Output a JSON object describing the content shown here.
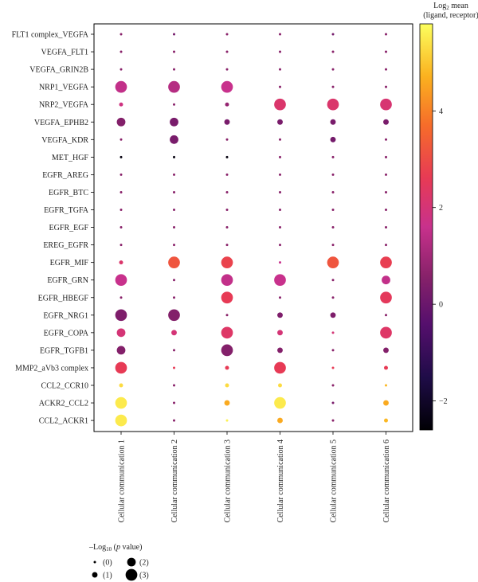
{
  "chart_data": {
    "type": "scatter",
    "subtype": "dot-plot",
    "y_categories": [
      "FLT1 complex_VEGFA",
      "VEGFA_FLT1",
      "VEGFA_GRIN2B",
      "NRP1_VEGFA",
      "NRP2_VEGFA",
      "VEGFA_EPHB2",
      "VEGFA_KDR",
      "MET_HGF",
      "EGFR_AREG",
      "EGFR_BTC",
      "EGFR_TGFA",
      "EGFR_EGF",
      "EREG_EGFR",
      "EGFR_MIF",
      "EGFR_GRN",
      "EGFR_HBEGF",
      "EGFR_NRG1",
      "EGFR_COPA",
      "EGFR_TGFB1",
      "MMP2_aVb3 complex",
      "CCL2_CCR10",
      "ACKR2_CCL2",
      "CCL2_ACKR1"
    ],
    "x_categories": [
      "Cellular communication 1",
      "Cellular communication 2",
      "Cellular communication 3",
      "Cellular communication 4",
      "Cellular communication 5",
      "Cellular communication 6"
    ],
    "colorbar": {
      "title_line1": "Log",
      "title_sub": "2",
      "title_line1_rest": " mean",
      "title_line2": "(ligand, receptor)",
      "min": -2.6,
      "max": 5.8,
      "ticks": [
        -2,
        0,
        2,
        4
      ],
      "tick_labels": [
        "−2",
        "0",
        "2",
        "4"
      ]
    },
    "size_legend": {
      "title_prefix": "–Log",
      "title_sub": "10",
      "title_open": " (",
      "title_italic": "p",
      "title_suffix": " value)",
      "levels": [
        {
          "value": 0,
          "label": "(0)"
        },
        {
          "value": 1,
          "label": "(1)"
        },
        {
          "value": 2,
          "label": "(2)"
        },
        {
          "value": 3,
          "label": "(3)"
        }
      ]
    },
    "points": {
      "color": [
        [
          0.6,
          0.2,
          0.6,
          0.6,
          0.2,
          0.6
        ],
        [
          0.6,
          0.6,
          0.6,
          0.6,
          0.6,
          0.6
        ],
        [
          0.6,
          0.6,
          0.6,
          0.6,
          0.6,
          0.6
        ],
        [
          1.5,
          1.3,
          1.6,
          0.6,
          0.6,
          0.6
        ],
        [
          1.8,
          0.6,
          0.8,
          2.2,
          2.2,
          2.1
        ],
        [
          0.5,
          0.3,
          0.3,
          0.3,
          0.3,
          0.3
        ],
        [
          0.6,
          0.3,
          0.6,
          0.6,
          0.2,
          0.6
        ],
        [
          -2.4,
          -2.4,
          -2.4,
          0.6,
          0.6,
          0.6
        ],
        [
          0.6,
          0.6,
          0.6,
          0.6,
          0.6,
          0.6
        ],
        [
          0.6,
          0.6,
          0.6,
          0.6,
          0.6,
          0.6
        ],
        [
          0.6,
          0.6,
          0.6,
          0.6,
          0.6,
          0.6
        ],
        [
          0.6,
          0.6,
          0.6,
          0.6,
          0.6,
          0.6
        ],
        [
          0.6,
          0.6,
          0.6,
          0.6,
          0.6,
          0.6
        ],
        [
          2.2,
          3.2,
          2.8,
          1.6,
          3.2,
          2.7
        ],
        [
          1.6,
          0.6,
          1.5,
          1.6,
          0.6,
          1.5
        ],
        [
          0.6,
          0.6,
          2.6,
          0.6,
          0.6,
          2.5
        ],
        [
          0.4,
          0.5,
          0.6,
          0.4,
          0.4,
          0.6
        ],
        [
          2.0,
          2.0,
          2.3,
          2.0,
          2.0,
          2.3
        ],
        [
          0.5,
          0.6,
          0.5,
          0.5,
          0.6,
          0.5
        ],
        [
          2.6,
          2.6,
          2.6,
          2.6,
          2.6,
          2.6
        ],
        [
          5.3,
          0.6,
          5.3,
          5.3,
          0.6,
          4.8
        ],
        [
          5.5,
          0.6,
          4.6,
          5.5,
          0.3,
          4.6
        ],
        [
          5.5,
          0.6,
          5.6,
          4.6,
          0.6,
          4.8
        ]
      ],
      "size": [
        [
          0,
          0,
          0,
          0,
          0,
          0
        ],
        [
          0,
          0,
          0,
          0,
          0,
          0
        ],
        [
          0,
          0,
          0,
          0,
          0,
          0
        ],
        [
          3,
          3,
          3,
          0,
          0,
          0
        ],
        [
          0.5,
          0,
          0.5,
          3,
          3,
          3
        ],
        [
          2,
          2,
          1,
          1,
          1,
          1
        ],
        [
          0,
          2,
          0,
          0,
          1,
          0
        ],
        [
          0,
          0,
          0,
          0,
          0,
          0
        ],
        [
          0,
          0,
          0,
          0,
          0,
          0
        ],
        [
          0,
          0,
          0,
          0,
          0,
          0
        ],
        [
          0,
          0,
          0,
          0,
          0,
          0
        ],
        [
          0,
          0,
          0,
          0,
          0,
          0
        ],
        [
          0,
          0,
          0,
          0,
          0,
          0
        ],
        [
          0.5,
          3,
          3,
          0,
          3,
          3
        ],
        [
          3,
          0,
          3,
          3,
          0,
          2
        ],
        [
          0,
          0,
          3,
          0,
          0,
          3
        ],
        [
          3,
          3,
          0,
          1,
          1,
          0
        ],
        [
          2,
          1,
          3,
          1,
          0,
          3
        ],
        [
          2,
          0,
          3,
          1,
          0,
          1
        ],
        [
          3,
          0,
          0.5,
          3,
          0,
          0.5
        ],
        [
          0.5,
          0,
          0.5,
          0.5,
          0,
          0
        ],
        [
          3,
          0,
          1,
          3,
          0,
          1
        ],
        [
          3,
          0,
          0,
          1,
          0,
          0.5
        ]
      ]
    }
  }
}
